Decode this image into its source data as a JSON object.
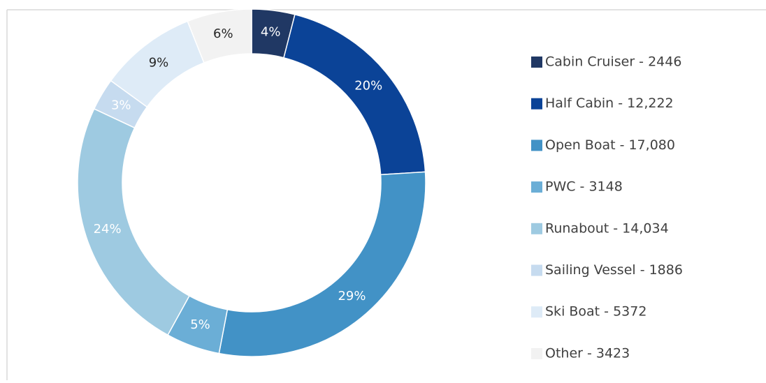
{
  "chart_data": {
    "type": "donut",
    "categories": [
      "Cabin Cruiser - 2446",
      "Half Cabin - 12,222",
      "Open Boat - 17,080",
      "PWC - 3148",
      "Runabout - 14,034",
      "Sailing Vessel - 1886",
      "Ski Boat - 5372",
      "Other - 3423"
    ],
    "values": [
      4,
      20,
      29,
      5,
      24,
      3,
      9,
      6
    ],
    "value_labels": [
      "4%",
      "20%",
      "29%",
      "5%",
      "24%",
      "3%",
      "9%",
      "6%"
    ],
    "colors": [
      "#203864",
      "#0b4397",
      "#4292c6",
      "#6baed6",
      "#9ecae1",
      "#c6dbef",
      "#deebf7",
      "#f2f2f2"
    ],
    "legend": "right"
  }
}
